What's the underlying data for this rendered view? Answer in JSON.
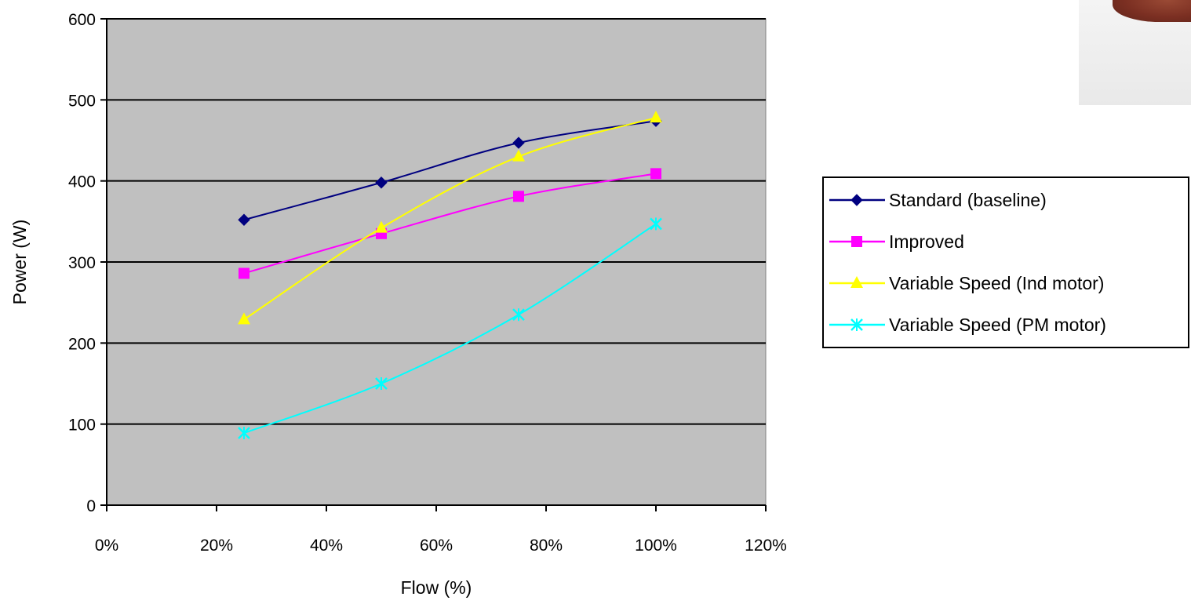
{
  "chart_data": {
    "type": "line",
    "title": "",
    "xlabel": "Flow (%)",
    "ylabel": "Power (W)",
    "x": [
      0.25,
      0.5,
      0.75,
      1.0
    ],
    "xlim": [
      0,
      1.2
    ],
    "ylim": [
      0,
      600
    ],
    "x_tick_values": [
      0,
      0.2,
      0.4,
      0.6,
      0.8,
      1.0,
      1.2
    ],
    "x_tick_labels": [
      "0%",
      "20%",
      "40%",
      "60%",
      "80%",
      "100%",
      "120%"
    ],
    "y_tick_values": [
      0,
      100,
      200,
      300,
      400,
      500,
      600
    ],
    "y_tick_labels": [
      "0",
      "100",
      "200",
      "300",
      "400",
      "500",
      "600"
    ],
    "grid": "horizontal",
    "legend_position": "right",
    "plot_background": "#c0c0c0",
    "series": [
      {
        "name": "Standard (baseline)",
        "values": [
          352,
          398,
          447,
          474
        ],
        "color": "#000080",
        "marker": "diamond"
      },
      {
        "name": "Improved",
        "values": [
          286,
          335,
          381,
          409
        ],
        "color": "#ff00ff",
        "marker": "square"
      },
      {
        "name": "Variable Speed (Ind motor)",
        "values": [
          229,
          342,
          430,
          478
        ],
        "color": "#ffff00",
        "marker": "triangle"
      },
      {
        "name": "Variable Speed (PM motor)",
        "values": [
          89,
          150,
          235,
          347
        ],
        "color": "#00ffff",
        "marker": "x"
      }
    ]
  }
}
